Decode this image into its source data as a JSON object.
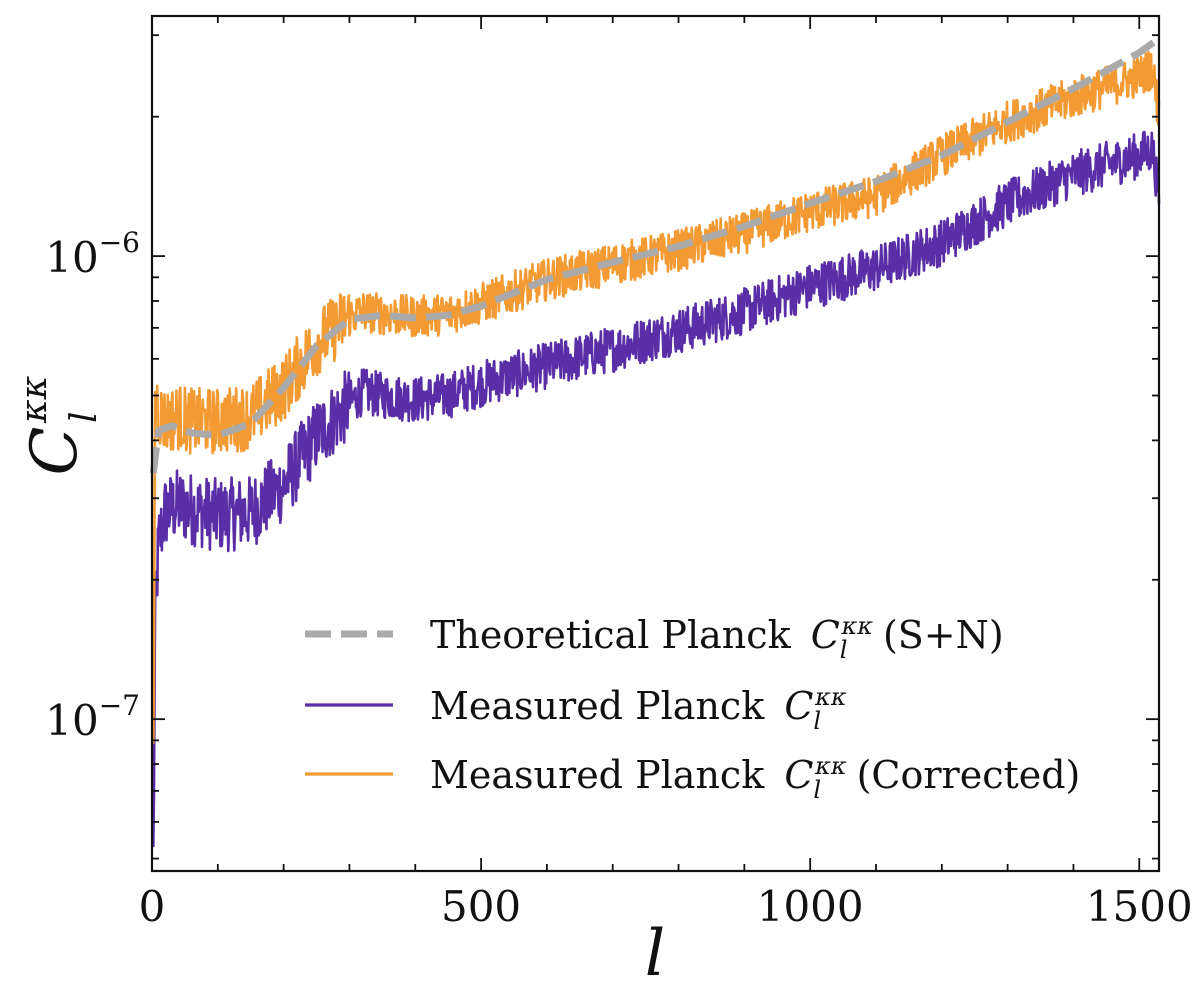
{
  "chart_data": {
    "type": "line",
    "title": "",
    "xlabel": "l",
    "ylabel": "C_l^{κκ}",
    "ylabel_base": "C",
    "ylabel_sub": "l",
    "ylabel_sup": "κκ",
    "xlim": [
      0,
      1530
    ],
    "ylim": [
      4.7e-08,
      3.3e-06
    ],
    "yscale": "log",
    "x_ticks": [
      0,
      500,
      1000,
      1500
    ],
    "x_tick_labels": [
      "0",
      "500",
      "1000",
      "1500"
    ],
    "y_major_ticks": [
      1e-07,
      1e-06
    ],
    "y_tick_label_base": "10",
    "y_tick_exponents": [
      "−7",
      "−6"
    ],
    "legend_position": "lower-right",
    "series": [
      {
        "name": "Theoretical Planck C_l^κκ (S+N)",
        "legend_prefix": "Theoretical Planck",
        "legend_suffix": "(S+N)",
        "style": "dashed",
        "color": "#aaaaaa",
        "noise": 0,
        "x": [
          2,
          10,
          30,
          60,
          100,
          150,
          200,
          250,
          300,
          350,
          400,
          450,
          500,
          600,
          700,
          800,
          900,
          1000,
          1100,
          1200,
          1300,
          1400,
          1500,
          1530
        ],
        "y": [
          3.4e-07,
          4.2e-07,
          4.3e-07,
          4.15e-07,
          4.1e-07,
          4.35e-07,
          5.2e-07,
          6.4e-07,
          7.3e-07,
          7.45e-07,
          7.35e-07,
          7.45e-07,
          7.8e-07,
          8.9e-07,
          9.7e-07,
          1.05e-06,
          1.16e-06,
          1.3e-06,
          1.45e-06,
          1.65e-06,
          1.95e-06,
          2.3e-06,
          2.75e-06,
          2.95e-06
        ]
      },
      {
        "name": "Measured Planck C_l^κκ",
        "legend_prefix": "Measured Planck",
        "legend_suffix": "",
        "style": "solid",
        "color": "#5a2ea6",
        "noise": 0.1,
        "x": [
          2,
          5,
          10,
          20,
          40,
          60,
          100,
          150,
          200,
          250,
          300,
          320,
          350,
          400,
          450,
          500,
          600,
          700,
          800,
          900,
          1000,
          1100,
          1200,
          1300,
          1400,
          1500,
          1520,
          1530
        ],
        "y": [
          5e-08,
          1.7e-07,
          2.4e-07,
          2.8e-07,
          2.9e-07,
          2.85e-07,
          2.75e-07,
          2.8e-07,
          3.2e-07,
          4.1e-07,
          4.8e-07,
          5.1e-07,
          5e-07,
          4.9e-07,
          5e-07,
          5.3e-07,
          5.8e-07,
          6.3e-07,
          6.9e-07,
          7.6e-07,
          8.6e-07,
          9.4e-07,
          1.07e-06,
          1.3e-06,
          1.5e-06,
          1.65e-06,
          1.7e-06,
          1.35e-06
        ]
      },
      {
        "name": "Measured Planck C_l^κκ (Corrected)",
        "legend_prefix": "Measured Planck",
        "legend_suffix": "(Corrected)",
        "style": "solid",
        "color": "#f39a32",
        "noise": 0.09,
        "x": [
          2,
          5,
          10,
          20,
          40,
          60,
          100,
          150,
          200,
          250,
          300,
          320,
          350,
          400,
          450,
          500,
          600,
          700,
          800,
          900,
          1000,
          1100,
          1200,
          1300,
          1400,
          1500,
          1520,
          1530
        ],
        "y": [
          8e-08,
          5.2e-07,
          4.6e-07,
          4.4e-07,
          4.5e-07,
          4.4e-07,
          4.4e-07,
          4.5e-07,
          5.2e-07,
          6.5e-07,
          7.4e-07,
          7.6e-07,
          7.5e-07,
          7.4e-07,
          7.5e-07,
          7.9e-07,
          8.9e-07,
          9.6e-07,
          1.03e-06,
          1.12e-06,
          1.25e-06,
          1.35e-06,
          1.65e-06,
          1.95e-06,
          2.2e-06,
          2.45e-06,
          2.55e-06,
          2e-06
        ]
      }
    ]
  }
}
